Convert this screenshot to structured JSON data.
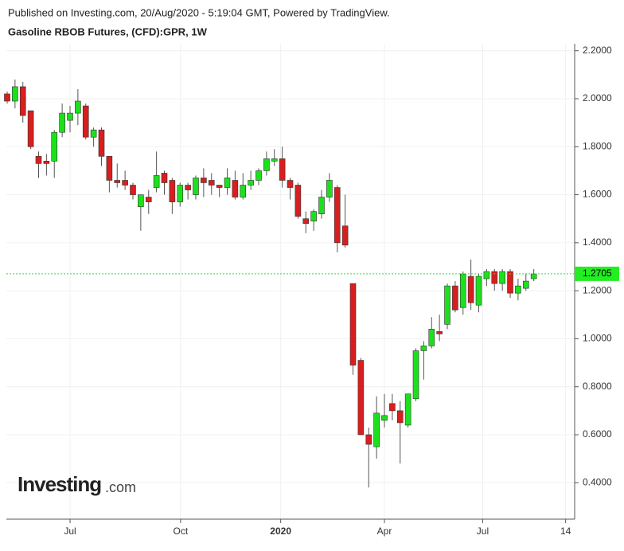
{
  "header": {
    "published": "Published on Investing.com, 20/Aug/2020 - 5:19:04 GMT, Powered by TradingView.",
    "symbol": "Gasoline RBOB Futures, (CFD):GPR, 1W"
  },
  "watermark": {
    "brand": "Investing",
    "suffix": ".com"
  },
  "chart_data": {
    "type": "candlestick",
    "up_color": "#1de01d",
    "down_color": "#d81e1e",
    "open": [
      2.02,
      1.99,
      2.05,
      1.95,
      1.76,
      1.74,
      1.74,
      1.86,
      1.91,
      1.94,
      1.97,
      1.84,
      1.87,
      1.76,
      1.66,
      1.66,
      1.64,
      1.55,
      1.59,
      1.63,
      1.69,
      1.66,
      1.57,
      1.64,
      1.6,
      1.67,
      1.66,
      1.64,
      1.63,
      1.66,
      1.59,
      1.64,
      1.66,
      1.7,
      1.74,
      1.75,
      1.66,
      1.64,
      1.5,
      1.49,
      1.52,
      1.59,
      1.63,
      1.47,
      1.23,
      0.91,
      0.6,
      0.55,
      0.66,
      0.73,
      0.7,
      0.64,
      0.75,
      0.95,
      0.97,
      1.03,
      1.06,
      1.22,
      1.13,
      1.26,
      1.14,
      1.25,
      1.28,
      1.23,
      1.28,
      1.19,
      1.21,
      1.25
    ],
    "high": [
      2.03,
      2.08,
      2.07,
      1.95,
      1.78,
      1.77,
      1.87,
      1.98,
      1.97,
      2.04,
      1.98,
      1.88,
      1.88,
      1.76,
      1.73,
      1.7,
      1.65,
      1.6,
      1.62,
      1.78,
      1.7,
      1.67,
      1.65,
      1.65,
      1.68,
      1.71,
      1.69,
      1.64,
      1.71,
      1.7,
      1.69,
      1.7,
      1.71,
      1.78,
      1.79,
      1.8,
      1.67,
      1.65,
      1.53,
      1.54,
      1.62,
      1.69,
      1.64,
      1.6,
      1.23,
      0.92,
      0.63,
      0.76,
      0.77,
      0.77,
      0.74,
      0.77,
      0.96,
      0.99,
      1.09,
      1.1,
      1.23,
      1.24,
      1.28,
      1.33,
      1.27,
      1.29,
      1.29,
      1.29,
      1.29,
      1.25,
      1.27,
      1.29
    ],
    "low": [
      1.98,
      1.96,
      1.9,
      1.79,
      1.67,
      1.68,
      1.67,
      1.84,
      1.86,
      1.89,
      1.83,
      1.8,
      1.72,
      1.61,
      1.63,
      1.62,
      1.58,
      1.45,
      1.52,
      1.61,
      1.6,
      1.52,
      1.55,
      1.58,
      1.58,
      1.59,
      1.6,
      1.59,
      1.6,
      1.58,
      1.58,
      1.62,
      1.64,
      1.68,
      1.72,
      1.63,
      1.58,
      1.5,
      1.44,
      1.45,
      1.5,
      1.57,
      1.36,
      1.38,
      0.85,
      0.6,
      0.38,
      0.5,
      0.63,
      0.66,
      0.48,
      0.63,
      0.74,
      0.83,
      0.96,
      0.99,
      1.04,
      1.11,
      1.1,
      1.12,
      1.11,
      1.22,
      1.2,
      1.2,
      1.17,
      1.16,
      1.2,
      1.24
    ],
    "close": [
      1.99,
      2.05,
      1.93,
      1.8,
      1.73,
      1.73,
      1.86,
      1.94,
      1.94,
      1.99,
      1.84,
      1.87,
      1.76,
      1.66,
      1.65,
      1.64,
      1.6,
      1.6,
      1.57,
      1.68,
      1.65,
      1.57,
      1.64,
      1.62,
      1.67,
      1.65,
      1.64,
      1.63,
      1.67,
      1.59,
      1.64,
      1.66,
      1.7,
      1.75,
      1.75,
      1.66,
      1.63,
      1.51,
      1.48,
      1.53,
      1.59,
      1.66,
      1.4,
      1.39,
      0.89,
      0.6,
      0.56,
      0.69,
      0.68,
      0.7,
      0.65,
      0.77,
      0.95,
      0.97,
      1.04,
      1.02,
      1.22,
      1.12,
      1.27,
      1.15,
      1.26,
      1.28,
      1.23,
      1.28,
      1.19,
      1.22,
      1.24,
      1.27
    ],
    "last_price": 1.2705,
    "last_price_color": "#22ee22",
    "xlim": [
      -0.1,
      72.2
    ],
    "xticks": [
      {
        "value": 8.0,
        "label": "Jul"
      },
      {
        "value": 22.06,
        "label": "Oct"
      },
      {
        "value": 34.8,
        "label": "2020"
      },
      {
        "value": 48.0,
        "label": "Apr"
      },
      {
        "value": 60.5,
        "label": "Jul"
      },
      {
        "value": 71.05,
        "label": "14"
      }
    ],
    "ylim": [
      0.2483,
      2.2289
    ],
    "yticks": [
      {
        "value": 0.4,
        "label": "0.4000"
      },
      {
        "value": 0.6,
        "label": "0.6000"
      },
      {
        "value": 0.8,
        "label": "0.8000"
      },
      {
        "value": 1.0,
        "label": "1.0000"
      },
      {
        "value": 1.2,
        "label": "1.2000"
      },
      {
        "value": 1.4,
        "label": "1.4000"
      },
      {
        "value": 1.6,
        "label": "1.6000"
      },
      {
        "value": 1.8,
        "label": "1.8000"
      },
      {
        "value": 2.0,
        "label": "2.0000"
      },
      {
        "value": 2.2,
        "label": "2.2000"
      }
    ],
    "grid": true
  }
}
